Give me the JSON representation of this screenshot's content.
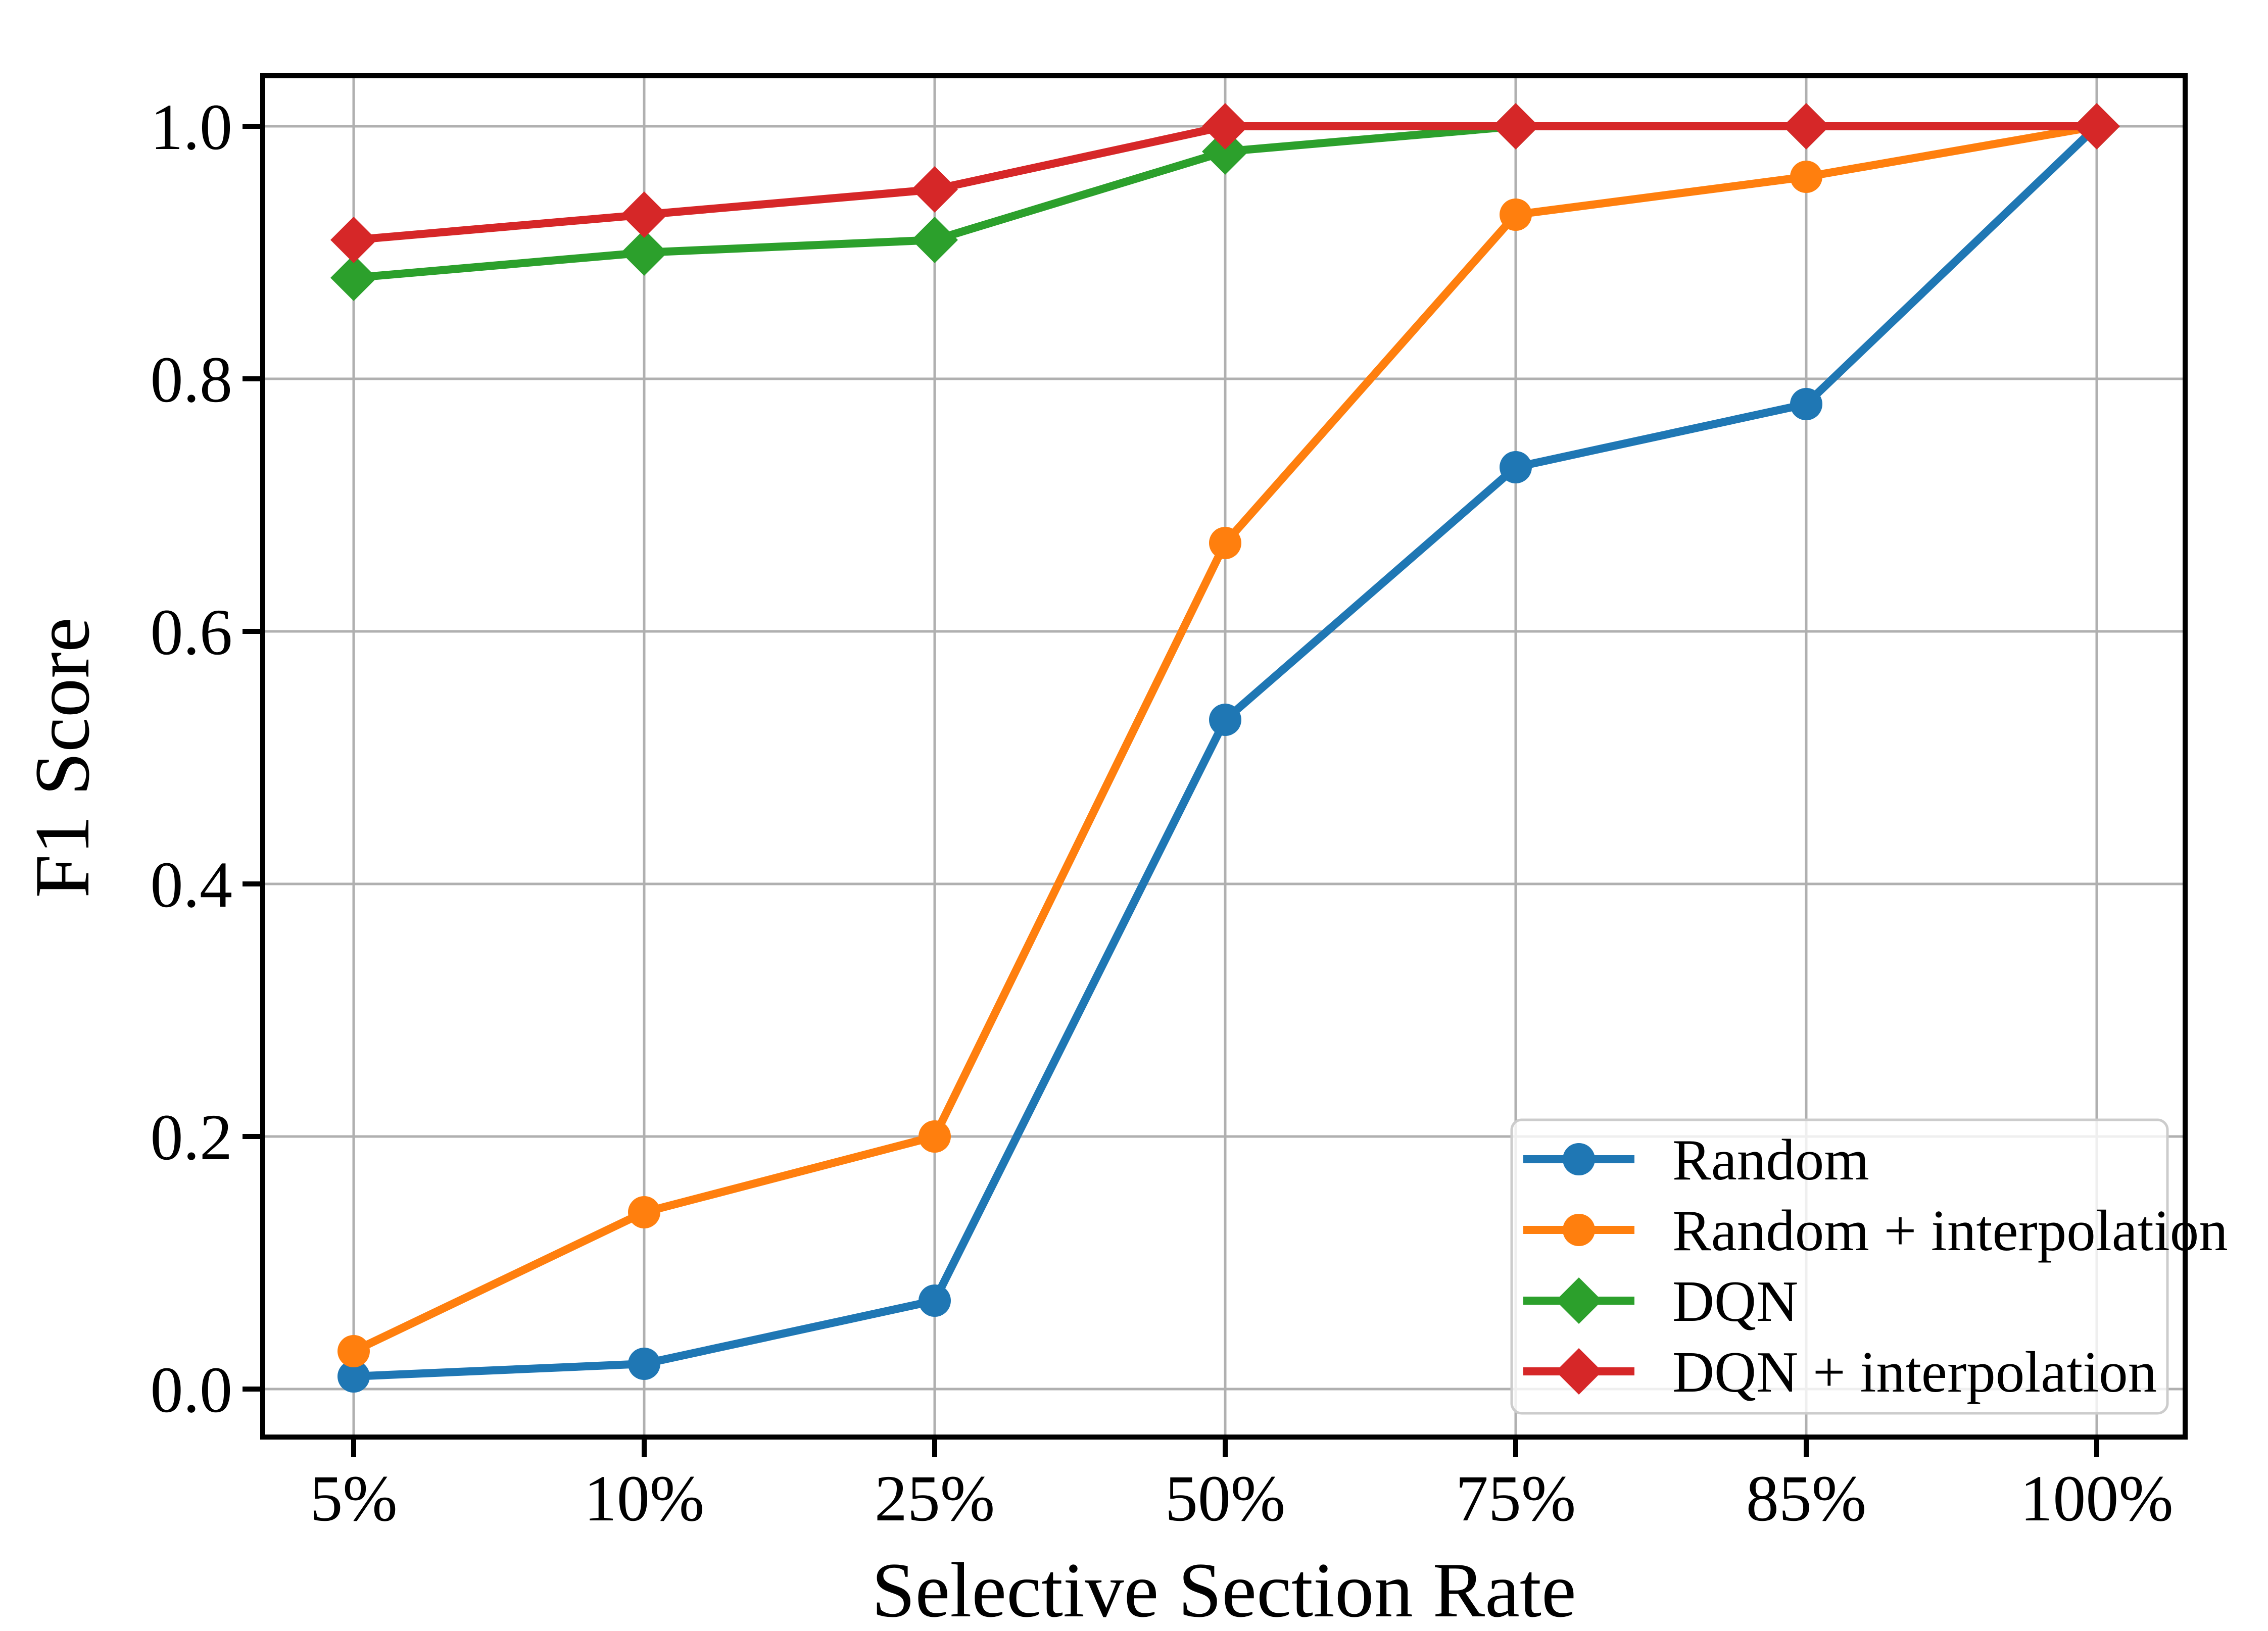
{
  "chart_data": {
    "type": "line",
    "title": "",
    "xlabel": "Selective Section Rate",
    "ylabel": "F1 Score",
    "categories": [
      "5%",
      "10%",
      "25%",
      "50%",
      "75%",
      "85%",
      "100%"
    ],
    "y_ticks": [
      0.0,
      0.2,
      0.4,
      0.6,
      0.8,
      1.0
    ],
    "y_tick_labels": [
      "0.0",
      "0.2",
      "0.4",
      "0.6",
      "0.8",
      "1.0"
    ],
    "ylim": [
      -0.04,
      1.04
    ],
    "grid": true,
    "legend_position": "lower right",
    "series": [
      {
        "name": "Random",
        "color": "#1f77b4",
        "marker": "circle",
        "values": [
          0.01,
          0.02,
          0.07,
          0.53,
          0.73,
          0.78,
          1.0
        ]
      },
      {
        "name": "Random + interpolation",
        "color": "#ff7f0e",
        "marker": "circle",
        "values": [
          0.03,
          0.14,
          0.2,
          0.67,
          0.93,
          0.96,
          1.0
        ]
      },
      {
        "name": "DQN",
        "color": "#2ca02c",
        "marker": "diamond",
        "values": [
          0.88,
          0.9,
          0.91,
          0.98,
          1.0,
          1.0,
          1.0
        ]
      },
      {
        "name": "DQN + interpolation",
        "color": "#d62728",
        "marker": "diamond",
        "values": [
          0.91,
          0.93,
          0.95,
          1.0,
          1.0,
          1.0,
          1.0
        ]
      }
    ],
    "colors": {
      "grid": "#b0b0b0",
      "spine": "#000000",
      "legend_edge": "#cccccc",
      "legend_fill": "rgba(255,255,255,0.8)",
      "background": "#ffffff"
    }
  }
}
